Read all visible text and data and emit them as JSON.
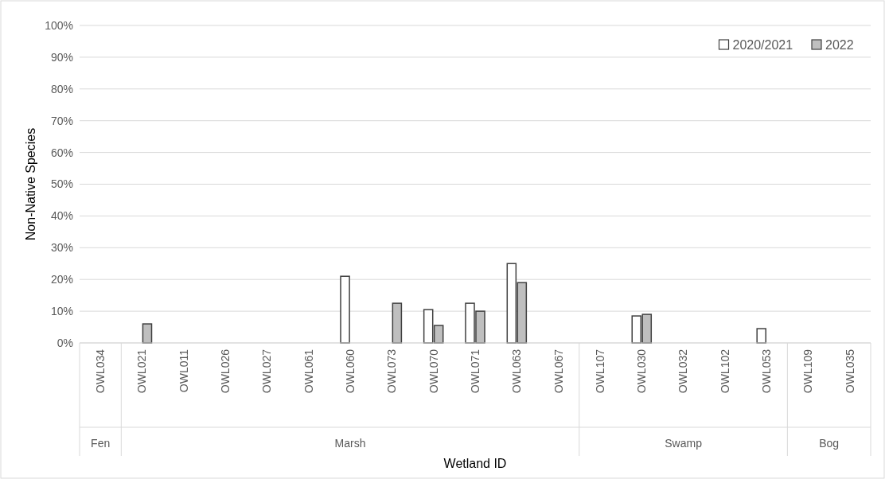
{
  "chart_data": {
    "type": "bar",
    "xlabel": "Wetland ID",
    "ylabel": "Non-Native Species",
    "categories": [
      "OWL034",
      "OWL021",
      "OWL011",
      "OWL026",
      "OWL027",
      "OWL061",
      "OWL060",
      "OWL073",
      "OWL070",
      "OWL071",
      "OWL063",
      "OWL067",
      "OWL107",
      "OWL030",
      "OWL032",
      "OWL102",
      "OWL053",
      "OWL109",
      "OWL035"
    ],
    "series": [
      {
        "name": "2020/2021",
        "color": "#ffffff",
        "values": [
          0,
          0,
          0,
          0,
          0,
          0,
          21,
          0,
          10.5,
          12.5,
          25,
          0,
          0,
          8.5,
          0,
          0,
          4.5,
          0,
          0
        ]
      },
      {
        "name": "2022",
        "color": "#bfbfbf",
        "values": [
          0,
          6,
          0,
          0,
          0,
          0,
          0,
          12.5,
          5.5,
          10,
          19,
          0,
          0,
          9,
          0,
          0,
          0,
          0,
          0
        ]
      }
    ],
    "ylim": [
      0,
      100
    ],
    "yticks": [
      {
        "value": 0,
        "label": "0%"
      },
      {
        "value": 10,
        "label": "10%"
      },
      {
        "value": 20,
        "label": "20%"
      },
      {
        "value": 30,
        "label": "30%"
      },
      {
        "value": 40,
        "label": "40%"
      },
      {
        "value": 50,
        "label": "50%"
      },
      {
        "value": 60,
        "label": "60%"
      },
      {
        "value": 70,
        "label": "70%"
      },
      {
        "value": 80,
        "label": "80%"
      },
      {
        "value": 90,
        "label": "90%"
      },
      {
        "value": 100,
        "label": "100%"
      }
    ],
    "grid": "y",
    "legend": "top right",
    "annotations": [
      "Fen",
      "Marsh",
      "Swamp",
      "Bog"
    ]
  }
}
